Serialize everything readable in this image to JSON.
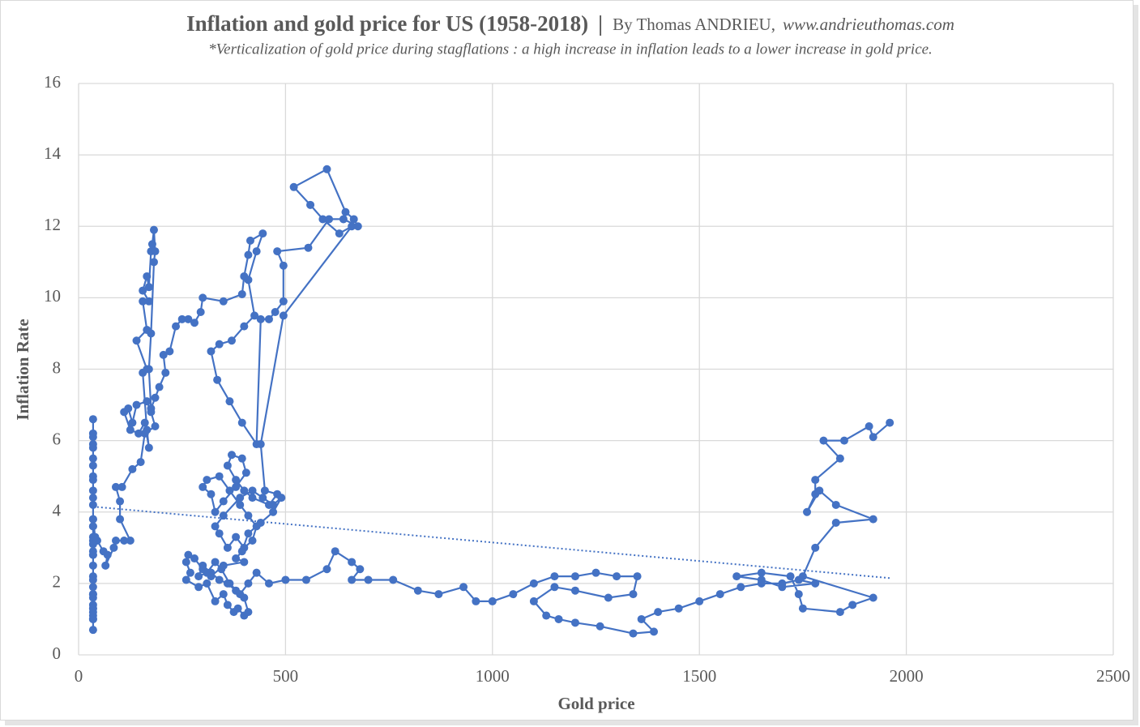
{
  "chart_data": {
    "type": "scatter",
    "title": "Inflation and gold price for US (1958-2018)",
    "separator": "|",
    "byline": "By Thomas ANDRIEU,",
    "website": "www.andrieuthomas.com",
    "subtitle": "*Verticalization of  gold price during stagflations : a high increase in inflation leads to a lower increase in gold price.",
    "xlabel": "Gold price",
    "ylabel": "Inflation Rate",
    "color": "#4472c4",
    "grid": true,
    "xlim": [
      0,
      2500
    ],
    "xticks": [
      0,
      500,
      1000,
      1500,
      2000,
      2500
    ],
    "ylim": [
      0,
      16
    ],
    "yticks": [
      0,
      2,
      4,
      6,
      8,
      10,
      12,
      14,
      16
    ],
    "x": [
      35,
      35,
      35,
      35,
      35,
      35,
      35,
      35,
      35,
      35,
      35,
      35,
      35,
      35,
      35,
      35,
      35,
      35,
      35,
      35,
      35,
      35,
      35,
      35,
      35,
      35,
      35,
      35,
      35,
      35,
      35,
      35,
      35,
      35,
      35,
      35,
      35,
      40,
      45,
      60,
      70,
      65,
      85,
      90,
      110,
      125,
      100,
      100,
      90,
      105,
      130,
      150,
      160,
      185,
      175,
      165,
      140,
      130,
      120,
      110,
      125,
      145,
      160,
      170,
      165,
      155,
      165,
      140,
      165,
      155,
      170,
      155,
      165,
      170,
      175,
      178,
      182,
      185,
      182,
      175,
      170,
      175,
      185,
      195,
      210,
      205,
      220,
      235,
      250,
      265,
      280,
      295,
      300,
      350,
      395,
      400,
      410,
      415,
      445,
      430,
      410,
      425,
      400,
      370,
      340,
      320,
      335,
      365,
      395,
      430,
      440,
      460,
      475,
      495,
      495,
      480,
      555,
      605,
      640,
      675,
      665,
      645,
      600,
      520,
      560,
      590,
      630,
      660,
      495,
      440,
      450,
      480,
      460,
      420,
      400,
      380,
      360,
      370,
      395,
      405,
      380,
      350,
      330,
      320,
      300,
      310,
      340,
      365,
      390,
      410,
      430,
      420,
      400,
      380,
      360,
      340,
      330,
      350,
      390,
      420,
      445,
      470,
      490,
      470,
      440,
      410,
      395,
      380,
      400,
      350,
      320,
      300,
      280,
      265,
      260,
      270,
      260,
      290,
      310,
      330,
      350,
      360,
      375,
      385,
      400,
      410,
      400,
      380,
      360,
      340,
      320,
      300,
      290,
      310,
      330,
      345,
      365,
      390,
      410,
      430,
      460,
      500,
      550,
      600,
      620,
      660,
      680,
      660,
      700,
      760,
      820,
      870,
      930,
      960,
      1000,
      1050,
      1100,
      1150,
      1200,
      1250,
      1300,
      1350,
      1340,
      1280,
      1200,
      1150,
      1100,
      1130,
      1160,
      1200,
      1260,
      1340,
      1390,
      1360,
      1400,
      1450,
      1500,
      1550,
      1600,
      1650,
      1700,
      1740,
      1780,
      1700,
      1650,
      1590,
      1650,
      1720,
      1740,
      1750,
      1840,
      1870,
      1920,
      1750,
      1780,
      1830,
      1920,
      1830,
      1790,
      1760,
      1780,
      1780,
      1840,
      1800,
      1850,
      1910,
      1920,
      1960
    ],
    "series": [
      {
        "name": "Inflation Rate",
        "color": "#4472c4",
        "values": [
          3.6,
          3.2,
          2.8,
          2.1,
          1.7,
          1.4,
          1.0,
          0.7,
          1.0,
          1.1,
          1.3,
          1.2,
          1.3,
          1.6,
          1.7,
          1.9,
          2.2,
          2.5,
          2.9,
          3.3,
          3.6,
          2.8,
          3.1,
          3.8,
          4.4,
          4.9,
          5.3,
          5.9,
          6.2,
          6.6,
          6.1,
          5.8,
          5.5,
          5.0,
          4.6,
          4.2,
          3.8,
          3.3,
          3.2,
          2.9,
          2.8,
          2.5,
          3.0,
          3.2,
          3.2,
          3.2,
          3.8,
          4.3,
          4.7,
          4.7,
          5.2,
          5.4,
          6.2,
          6.4,
          6.8,
          7.1,
          7.0,
          6.5,
          6.9,
          6.8,
          6.3,
          6.2,
          6.5,
          5.8,
          6.3,
          7.9,
          8.0,
          8.8,
          9.1,
          9.9,
          9.9,
          10.2,
          10.6,
          10.3,
          11.3,
          11.5,
          11.9,
          11.3,
          11.0,
          9.0,
          8.0,
          6.9,
          7.2,
          7.5,
          7.9,
          8.4,
          8.5,
          9.2,
          9.4,
          9.4,
          9.3,
          9.6,
          10.0,
          9.9,
          10.1,
          10.6,
          11.2,
          11.6,
          11.8,
          11.3,
          10.5,
          9.5,
          9.2,
          8.8,
          8.7,
          8.5,
          7.7,
          7.1,
          6.5,
          5.9,
          9.4,
          9.4,
          9.6,
          9.9,
          10.9,
          11.3,
          11.4,
          12.2,
          12.2,
          12.0,
          12.2,
          12.4,
          13.6,
          13.1,
          12.6,
          12.2,
          11.8,
          12.0,
          9.5,
          5.9,
          4.6,
          4.5,
          4.2,
          4.4,
          4.6,
          4.9,
          5.3,
          5.6,
          5.5,
          5.1,
          4.7,
          4.3,
          4.0,
          4.5,
          4.7,
          4.9,
          5.0,
          4.6,
          4.2,
          3.9,
          3.6,
          3.2,
          3.0,
          3.3,
          3.0,
          3.4,
          3.6,
          3.9,
          4.4,
          4.6,
          4.4,
          4.2,
          4.4,
          4.0,
          3.7,
          3.4,
          2.9,
          2.7,
          2.6,
          2.5,
          2.2,
          2.4,
          2.7,
          2.8,
          2.6,
          2.3,
          2.1,
          1.9,
          2.0,
          1.5,
          1.7,
          1.4,
          1.2,
          1.3,
          1.1,
          1.2,
          1.6,
          1.8,
          2.0,
          2.1,
          2.3,
          2.5,
          2.2,
          2.3,
          2.6,
          2.4,
          2.0,
          1.7,
          2.0,
          2.3,
          2.0,
          2.1,
          2.1,
          2.4,
          2.9,
          2.6,
          2.4,
          2.1,
          2.1,
          2.1,
          1.8,
          1.7,
          1.9,
          1.5,
          1.5,
          1.7,
          2.0,
          2.2,
          2.2,
          2.3,
          2.2,
          2.2,
          1.7,
          1.6,
          1.8,
          1.9,
          1.5,
          1.1,
          1.0,
          0.9,
          0.8,
          0.6,
          0.65,
          1.0,
          1.2,
          1.3,
          1.5,
          1.7,
          1.9,
          2.0,
          2.0,
          2.1,
          2.0,
          1.9,
          2.1,
          2.2,
          2.3,
          2.2,
          1.7,
          1.3,
          1.2,
          1.4,
          1.6,
          2.2,
          3.0,
          3.7,
          3.8,
          4.2,
          4.6,
          4.0,
          4.5,
          4.9,
          5.5,
          6.0,
          6.0,
          6.4,
          6.1,
          6.5
        ]
      }
    ],
    "trendline": {
      "x": [
        35,
        1960
      ],
      "values": [
        4.15,
        2.15
      ],
      "color": "#4472c4",
      "style": "dotted"
    }
  }
}
